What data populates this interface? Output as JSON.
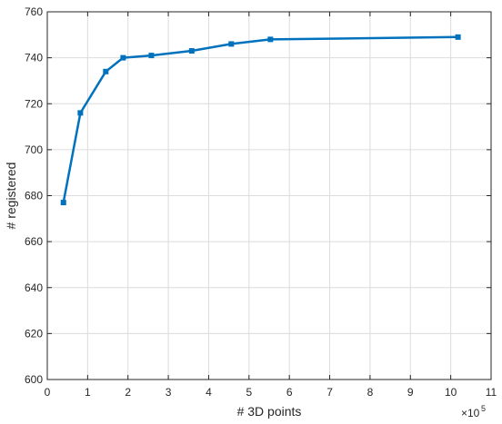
{
  "chart_data": {
    "type": "line",
    "title": "",
    "xlabel": "# 3D points",
    "ylabel": "# registered",
    "x_exponent_base": "10",
    "x_exponent_power": "5",
    "xlim": [
      0,
      11
    ],
    "ylim": [
      600,
      760
    ],
    "x_ticks": [
      "0",
      "1",
      "2",
      "3",
      "4",
      "5",
      "6",
      "7",
      "8",
      "9",
      "10",
      "11"
    ],
    "y_ticks": [
      "600",
      "620",
      "640",
      "660",
      "680",
      "700",
      "720",
      "740",
      "760"
    ],
    "grid": true,
    "legend": "none",
    "series": [
      {
        "color": "#0072BD",
        "marker": "square",
        "x": [
          0.4,
          0.82,
          1.45,
          1.88,
          2.58,
          3.58,
          4.56,
          5.53,
          10.18
        ],
        "y": [
          677,
          716,
          734,
          740,
          741,
          743,
          746,
          748,
          749
        ]
      }
    ]
  }
}
